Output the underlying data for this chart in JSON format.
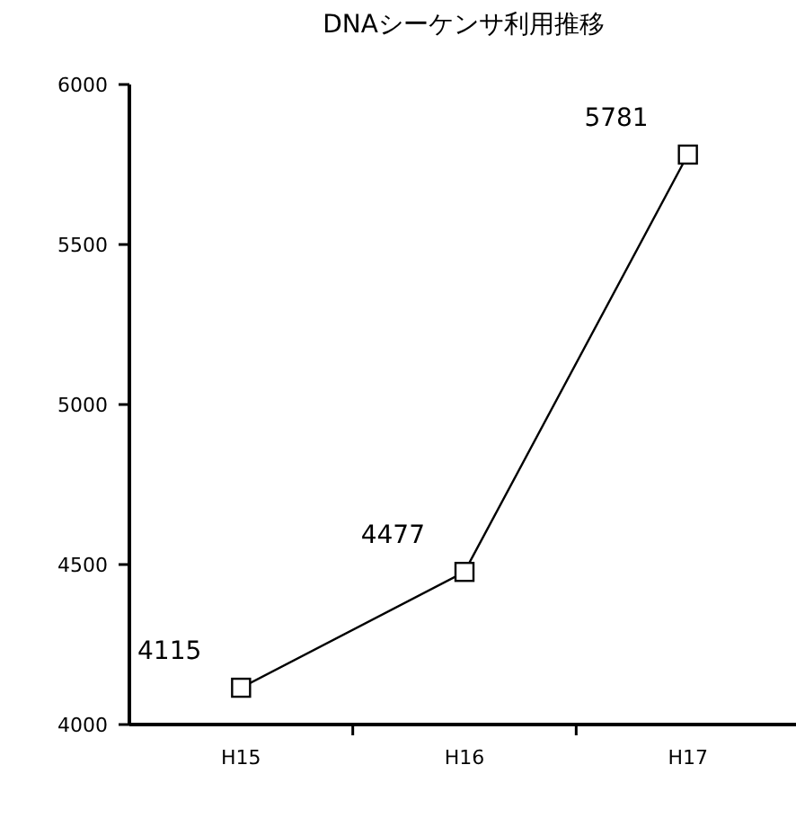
{
  "chart_data": {
    "type": "line",
    "title": "DNAシーケンサ利用推移",
    "categories": [
      "H15",
      "H16",
      "H17"
    ],
    "series": [
      {
        "color": "#000000",
        "values": [
          4115,
          4477,
          5781
        ]
      }
    ],
    "ylim": [
      4000,
      6000
    ],
    "yticks": [
      4000,
      4500,
      5000,
      5500,
      6000
    ],
    "grid": false,
    "marker": "square",
    "line_style": "solid",
    "data_labels": true
  }
}
